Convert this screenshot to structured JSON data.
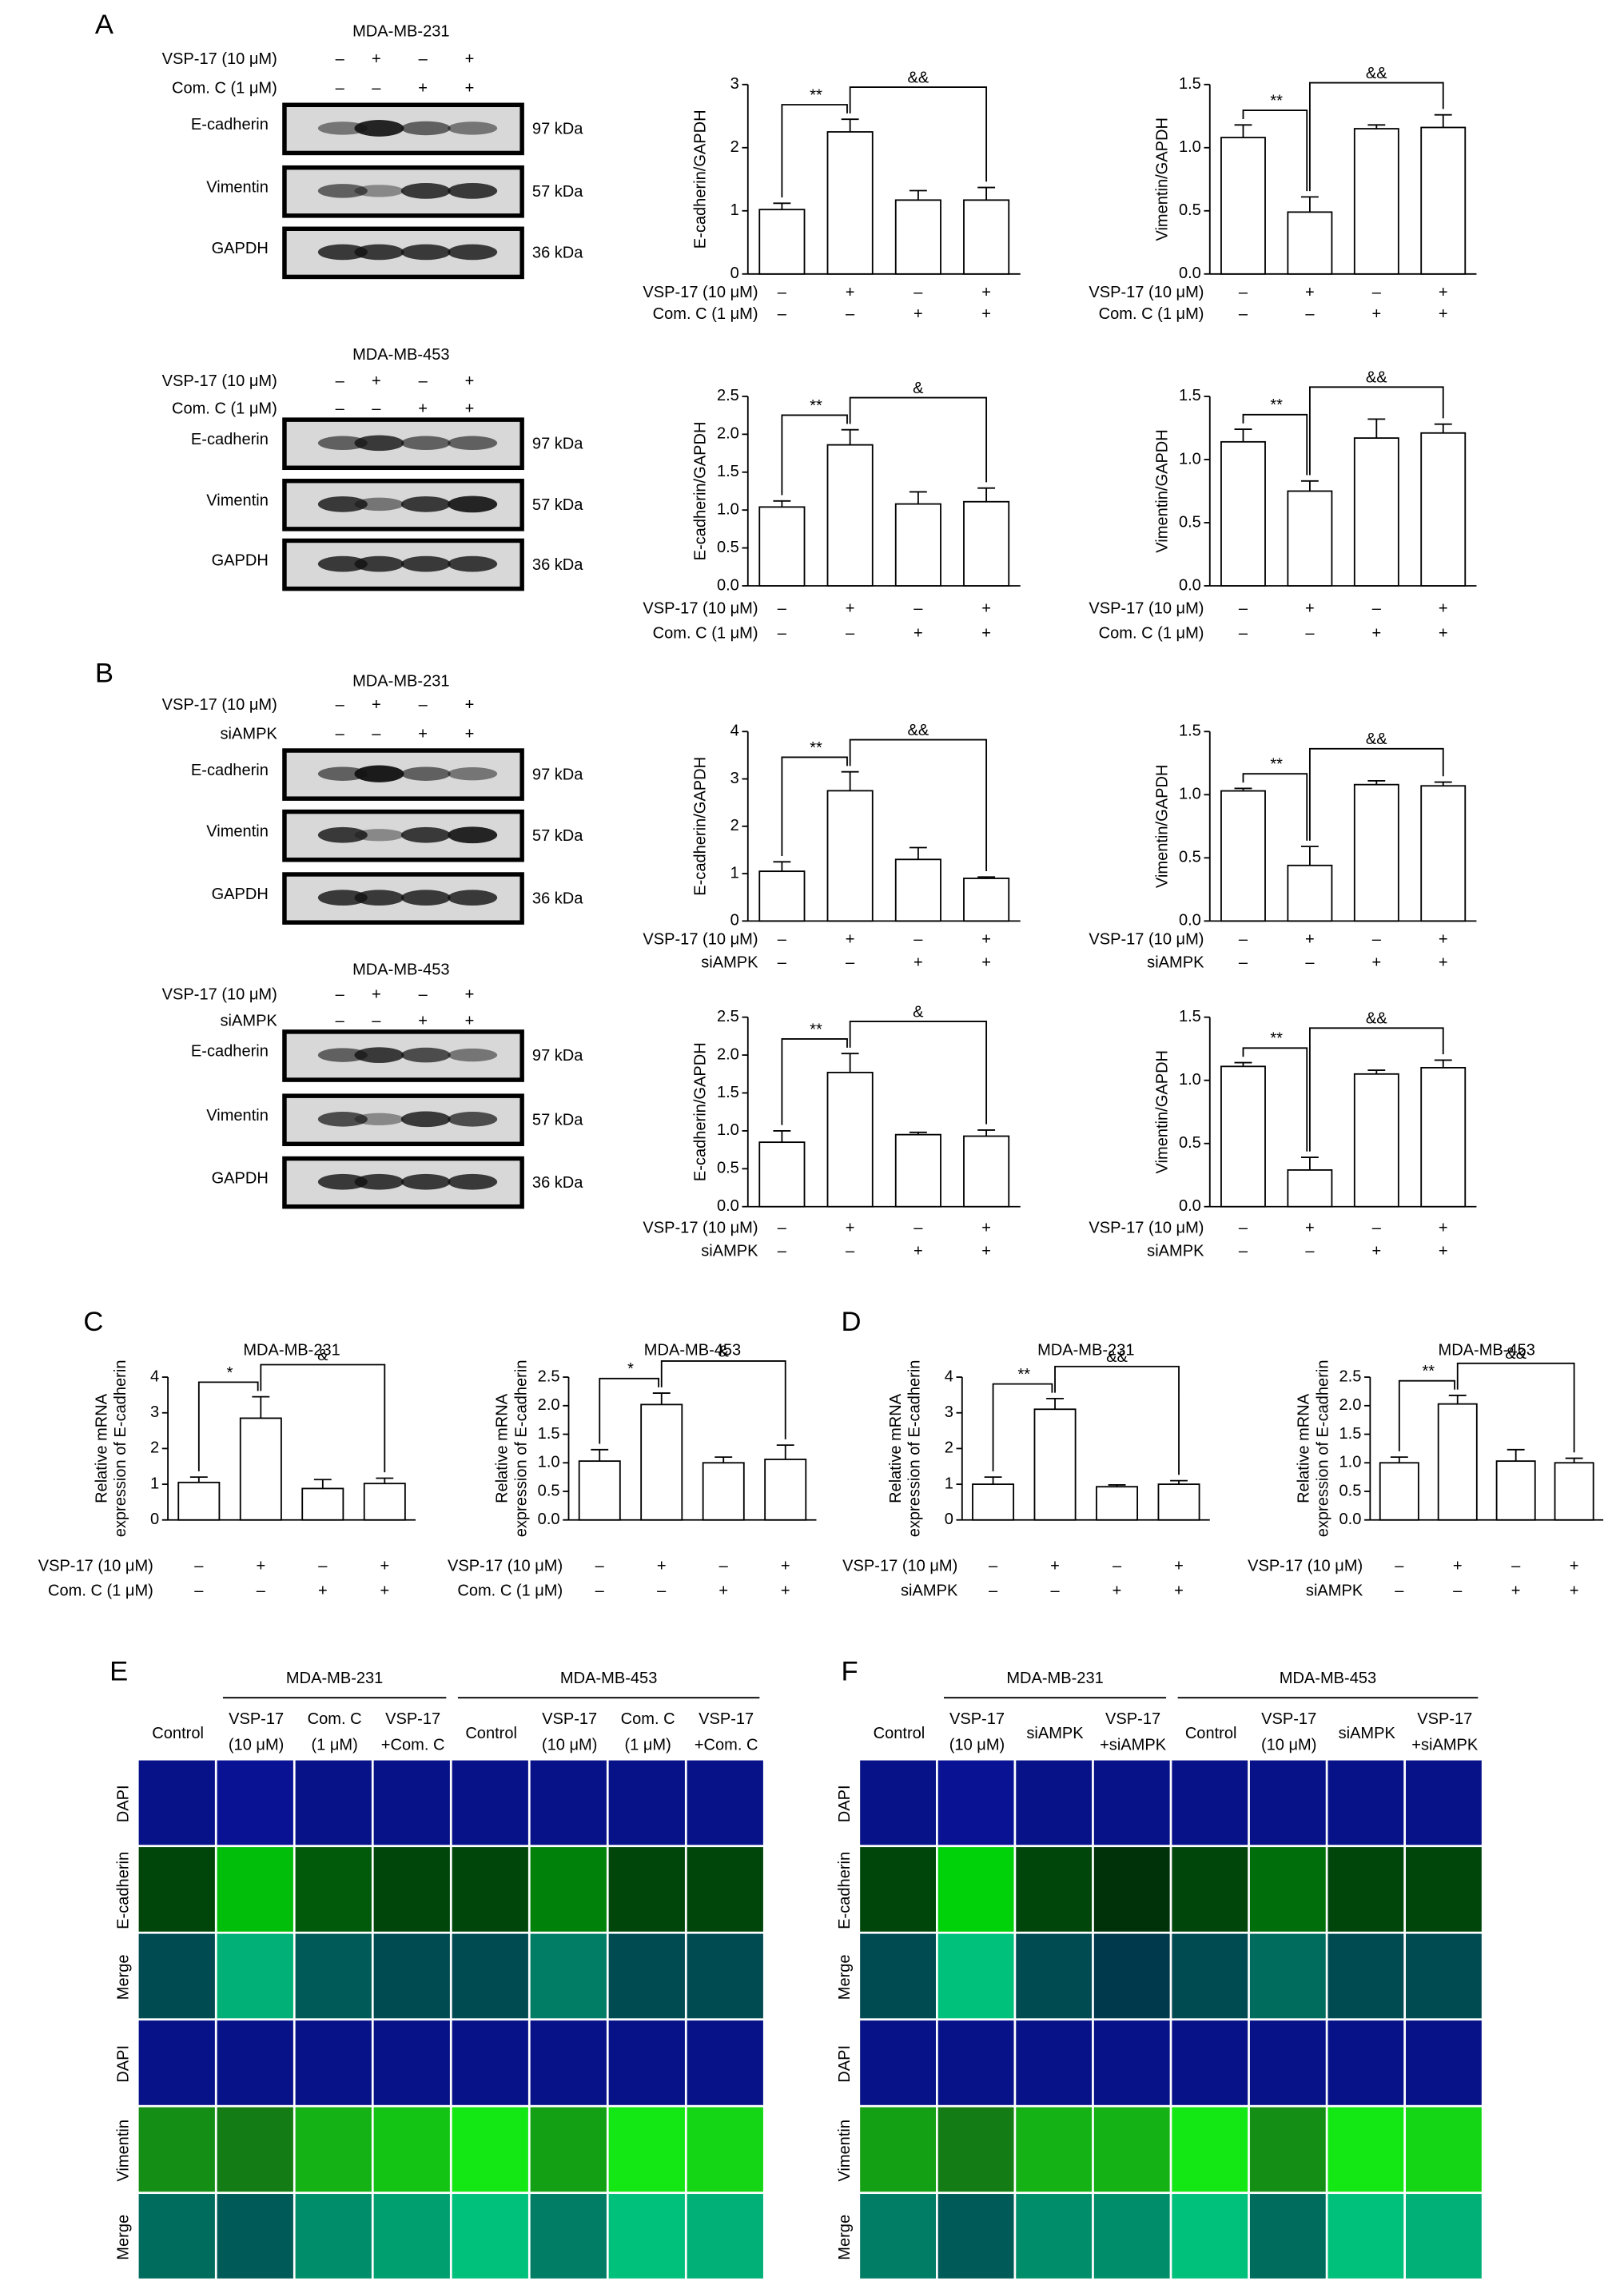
{
  "panel_labels": [
    "A",
    "B",
    "C",
    "D",
    "E",
    "F"
  ],
  "blots": [
    {
      "cell_line": "MDA-MB-231",
      "treatments": [
        {
          "label": "VSP-17 (10 μM)",
          "signs": [
            "–",
            "+",
            "–",
            "+"
          ]
        },
        {
          "label": "Com. C (1 μM)",
          "signs": [
            "–",
            "–",
            "+",
            "+"
          ]
        }
      ],
      "proteins": [
        "E-cadherin",
        "Vimentin",
        "GAPDH"
      ],
      "sizes": [
        "97 kDa",
        "57 kDa",
        "36 kDa"
      ]
    },
    {
      "cell_line": "MDA-MB-453",
      "treatments": [
        {
          "label": "VSP-17 (10 μM)",
          "signs": [
            "–",
            "+",
            "–",
            "+"
          ]
        },
        {
          "label": "Com. C (1 μM)",
          "signs": [
            "–",
            "–",
            "+",
            "+"
          ]
        }
      ],
      "proteins": [
        "E-cadherin",
        "Vimentin",
        "GAPDH"
      ],
      "sizes": [
        "97 kDa",
        "57 kDa",
        "36 kDa"
      ]
    },
    {
      "cell_line": "MDA-MB-231",
      "treatments": [
        {
          "label": "VSP-17 (10 μM)",
          "signs": [
            "–",
            "+",
            "–",
            "+"
          ]
        },
        {
          "label": "siAMPK",
          "signs": [
            "–",
            "–",
            "+",
            "+"
          ]
        }
      ],
      "proteins": [
        "E-cadherin",
        "Vimentin",
        "GAPDH"
      ],
      "sizes": [
        "97 kDa",
        "57 kDa",
        "36 kDa"
      ]
    },
    {
      "cell_line": "MDA-MB-453",
      "treatments": [
        {
          "label": "VSP-17 (10 μM)",
          "signs": [
            "–",
            "+",
            "–",
            "+"
          ]
        },
        {
          "label": "siAMPK",
          "signs": [
            "–",
            "–",
            "+",
            "+"
          ]
        }
      ],
      "proteins": [
        "E-cadherin",
        "Vimentin",
        "GAPDH"
      ],
      "sizes": [
        "97 kDa",
        "57 kDa",
        "36 kDa"
      ]
    }
  ],
  "chart_data": [
    {
      "type": "bar",
      "y_label": [
        "E-cadherin/GAPDH"
      ],
      "values": [
        1.02,
        2.25,
        1.17,
        1.17
      ],
      "errors": [
        0.1,
        0.2,
        0.15,
        0.2
      ],
      "ylim": [
        0,
        3
      ],
      "yticks": [
        0,
        1,
        2,
        3
      ],
      "annotations": [
        "**",
        "&&"
      ],
      "color": "#ffffff",
      "treatments": [
        {
          "label": "VSP-17 (10 μM)",
          "signs": [
            "–",
            "+",
            "–",
            "+"
          ]
        },
        {
          "label": "Com. C (1 μM)",
          "signs": [
            "–",
            "–",
            "+",
            "+"
          ]
        }
      ]
    },
    {
      "type": "bar",
      "y_label": [
        "Vimentin/GAPDH"
      ],
      "values": [
        1.08,
        0.49,
        1.15,
        1.16
      ],
      "errors": [
        0.1,
        0.12,
        0.03,
        0.1
      ],
      "ylim": [
        0,
        1.5
      ],
      "yticks": [
        {
          "value": 0,
          "label": "0.0"
        },
        0.5,
        {
          "value": 1,
          "label": "1.0"
        },
        1.5
      ],
      "annotations": [
        "**",
        "&&"
      ],
      "color": "#ffffff",
      "treatments": [
        {
          "label": "VSP-17 (10 μM)",
          "signs": [
            "–",
            "+",
            "–",
            "+"
          ]
        },
        {
          "label": "Com. C (1 μM)",
          "signs": [
            "–",
            "–",
            "+",
            "+"
          ]
        }
      ]
    },
    {
      "type": "bar",
      "y_label": [
        "E-cadherin/GAPDH"
      ],
      "values": [
        1.04,
        1.86,
        1.08,
        1.11
      ],
      "errors": [
        0.08,
        0.2,
        0.16,
        0.18
      ],
      "ylim": [
        0,
        2.5
      ],
      "yticks": [
        {
          "value": 0,
          "label": "0.0"
        },
        0.5,
        {
          "value": 1,
          "label": "1.0"
        },
        1.5,
        {
          "value": 2,
          "label": "2.0"
        },
        2.5
      ],
      "annotations": [
        "**",
        "&"
      ],
      "color": "#ffffff",
      "treatments": [
        {
          "label": "VSP-17 (10 μM)",
          "signs": [
            "–",
            "+",
            "–",
            "+"
          ]
        },
        {
          "label": "Com. C (1 μM)",
          "signs": [
            "–",
            "–",
            "+",
            "+"
          ]
        }
      ]
    },
    {
      "type": "bar",
      "y_label": [
        "Vimentin/GAPDH"
      ],
      "values": [
        1.14,
        0.75,
        1.17,
        1.21
      ],
      "errors": [
        0.1,
        0.08,
        0.15,
        0.07
      ],
      "ylim": [
        0,
        1.5
      ],
      "yticks": [
        {
          "value": 0,
          "label": "0.0"
        },
        0.5,
        {
          "value": 1,
          "label": "1.0"
        },
        1.5
      ],
      "annotations": [
        "**",
        "&&"
      ],
      "color": "#ffffff",
      "treatments": [
        {
          "label": "VSP-17 (10 μM)",
          "signs": [
            "–",
            "+",
            "–",
            "+"
          ]
        },
        {
          "label": "Com. C (1 μM)",
          "signs": [
            "–",
            "–",
            "+",
            "+"
          ]
        }
      ]
    },
    {
      "type": "bar",
      "y_label": [
        "E-cadherin/GAPDH"
      ],
      "values": [
        1.05,
        2.75,
        1.3,
        0.9
      ],
      "errors": [
        0.2,
        0.4,
        0.25,
        0.03
      ],
      "ylim": [
        0,
        4
      ],
      "yticks": [
        0,
        1,
        2,
        3,
        4
      ],
      "annotations": [
        "**",
        "&&"
      ],
      "color": "#ffffff",
      "treatments": [
        {
          "label": "VSP-17 (10 μM)",
          "signs": [
            "–",
            "+",
            "–",
            "+"
          ]
        },
        {
          "label": "siAMPK",
          "signs": [
            "–",
            "–",
            "+",
            "+"
          ]
        }
      ]
    },
    {
      "type": "bar",
      "y_label": [
        "Vimentin/GAPDH"
      ],
      "values": [
        1.03,
        0.44,
        1.08,
        1.07
      ],
      "errors": [
        0.02,
        0.15,
        0.03,
        0.03
      ],
      "ylim": [
        0,
        1.5
      ],
      "yticks": [
        {
          "value": 0,
          "label": "0.0"
        },
        0.5,
        {
          "value": 1,
          "label": "1.0"
        },
        1.5
      ],
      "annotations": [
        "**",
        "&&"
      ],
      "color": "#ffffff",
      "treatments": [
        {
          "label": "VSP-17 (10 μM)",
          "signs": [
            "–",
            "+",
            "–",
            "+"
          ]
        },
        {
          "label": "siAMPK",
          "signs": [
            "–",
            "–",
            "+",
            "+"
          ]
        }
      ]
    },
    {
      "type": "bar",
      "y_label": [
        "E-cadherin/GAPDH"
      ],
      "values": [
        0.85,
        1.77,
        0.95,
        0.93
      ],
      "errors": [
        0.15,
        0.25,
        0.03,
        0.08
      ],
      "ylim": [
        0,
        2.5
      ],
      "yticks": [
        {
          "value": 0,
          "label": "0.0"
        },
        0.5,
        {
          "value": 1,
          "label": "1.0"
        },
        1.5,
        {
          "value": 2,
          "label": "2.0"
        },
        2.5
      ],
      "annotations": [
        "**",
        "&"
      ],
      "color": "#ffffff",
      "treatments": [
        {
          "label": "VSP-17 (10 μM)",
          "signs": [
            "–",
            "+",
            "–",
            "+"
          ]
        },
        {
          "label": "siAMPK",
          "signs": [
            "–",
            "–",
            "+",
            "+"
          ]
        }
      ]
    },
    {
      "type": "bar",
      "y_label": [
        "Vimentin/GAPDH"
      ],
      "values": [
        1.11,
        0.29,
        1.05,
        1.1
      ],
      "errors": [
        0.03,
        0.1,
        0.03,
        0.06
      ],
      "ylim": [
        0,
        1.5
      ],
      "yticks": [
        {
          "value": 0,
          "label": "0.0"
        },
        0.5,
        {
          "value": 1,
          "label": "1.0"
        },
        1.5
      ],
      "annotations": [
        "**",
        "&&"
      ],
      "color": "#ffffff",
      "treatments": [
        {
          "label": "VSP-17 (10 μM)",
          "signs": [
            "–",
            "+",
            "–",
            "+"
          ]
        },
        {
          "label": "siAMPK",
          "signs": [
            "–",
            "–",
            "+",
            "+"
          ]
        }
      ]
    },
    {
      "type": "bar",
      "title": "MDA-MB-231",
      "y_label": [
        "Relative mRNA",
        "expression of E-cadherin"
      ],
      "values": [
        1.05,
        2.85,
        0.88,
        1.02
      ],
      "errors": [
        0.15,
        0.6,
        0.25,
        0.15
      ],
      "ylim": [
        0,
        4
      ],
      "yticks": [
        0,
        1,
        2,
        3,
        4
      ],
      "annotations": [
        "*",
        "&"
      ],
      "color": "#ffffff",
      "treatments": [
        {
          "label": "VSP-17 (10 μM)",
          "signs": [
            "–",
            "+",
            "–",
            "+"
          ]
        },
        {
          "label": "Com. C (1 μM)",
          "signs": [
            "–",
            "–",
            "+",
            "+"
          ]
        }
      ]
    },
    {
      "type": "bar",
      "title": "MDA-MB-453",
      "y_label": [
        "Relative mRNA",
        "expression of E-cadherin"
      ],
      "values": [
        1.03,
        2.02,
        1.0,
        1.06
      ],
      "errors": [
        0.2,
        0.2,
        0.1,
        0.25
      ],
      "ylim": [
        0,
        2.5
      ],
      "yticks": [
        {
          "value": 0,
          "label": "0.0"
        },
        0.5,
        {
          "value": 1,
          "label": "1.0"
        },
        1.5,
        {
          "value": 2,
          "label": "2.0"
        },
        2.5
      ],
      "annotations": [
        "*",
        "&"
      ],
      "color": "#ffffff",
      "treatments": [
        {
          "label": "VSP-17 (10 μM)",
          "signs": [
            "–",
            "+",
            "–",
            "+"
          ]
        },
        {
          "label": "Com. C (1 μM)",
          "signs": [
            "–",
            "–",
            "+",
            "+"
          ]
        }
      ]
    },
    {
      "type": "bar",
      "title": "MDA-MB-231",
      "y_label": [
        "Relative mRNA",
        "expression of E-cadherin"
      ],
      "values": [
        1.0,
        3.1,
        0.93,
        1.0
      ],
      "errors": [
        0.2,
        0.3,
        0.05,
        0.1
      ],
      "ylim": [
        0,
        4
      ],
      "yticks": [
        0,
        1,
        2,
        3,
        4
      ],
      "annotations": [
        "**",
        "&&"
      ],
      "color": "#ffffff",
      "treatments": [
        {
          "label": "VSP-17 (10 μM)",
          "signs": [
            "–",
            "+",
            "–",
            "+"
          ]
        },
        {
          "label": "siAMPK",
          "signs": [
            "–",
            "–",
            "+",
            "+"
          ]
        }
      ]
    },
    {
      "type": "bar",
      "title": "MDA-MB-453",
      "y_label": [
        "Relative mRNA",
        "expression of E-cadherin"
      ],
      "values": [
        1.0,
        2.03,
        1.03,
        1.0
      ],
      "errors": [
        0.1,
        0.15,
        0.2,
        0.08
      ],
      "ylim": [
        0,
        2.5
      ],
      "yticks": [
        {
          "value": 0,
          "label": "0.0"
        },
        0.5,
        {
          "value": 1,
          "label": "1.0"
        },
        1.5,
        {
          "value": 2,
          "label": "2.0"
        },
        2.5
      ],
      "annotations": [
        "**",
        "&&"
      ],
      "color": "#ffffff",
      "treatments": [
        {
          "label": "VSP-17 (10 μM)",
          "signs": [
            "–",
            "+",
            "–",
            "+"
          ]
        },
        {
          "label": "siAMPK",
          "signs": [
            "–",
            "–",
            "+",
            "+"
          ]
        }
      ]
    }
  ],
  "microscopy": [
    {
      "cell_lines": [
        "MDA-MB-231",
        "MDA-MB-453"
      ],
      "columns": [
        [
          "Control"
        ],
        [
          "VSP-17",
          "(10 μM)"
        ],
        [
          "Com. C",
          "(1 μM)"
        ],
        [
          "VSP-17",
          "+Com. C"
        ],
        [
          "Control"
        ],
        [
          "VSP-17",
          "(10 μM)"
        ],
        [
          "Com. C",
          "(1 μM)"
        ],
        [
          "VSP-17",
          "+Com. C"
        ]
      ],
      "rows": [
        "DAPI",
        "E-cadherin",
        "Merge",
        "DAPI",
        "Vimentin",
        "Merge"
      ]
    },
    {
      "cell_lines": [
        "MDA-MB-231",
        "MDA-MB-453"
      ],
      "columns": [
        [
          "Control"
        ],
        [
          "VSP-17",
          "(10 μM)"
        ],
        [
          "siAMPK"
        ],
        [
          "VSP-17",
          "+siAMPK"
        ],
        [
          "Control"
        ],
        [
          "VSP-17",
          "(10 μM)"
        ],
        [
          "siAMPK"
        ],
        [
          "VSP-17",
          "+siAMPK"
        ]
      ],
      "rows": [
        "DAPI",
        "E-cadherin",
        "Merge",
        "DAPI",
        "Vimentin",
        "Merge"
      ]
    }
  ]
}
